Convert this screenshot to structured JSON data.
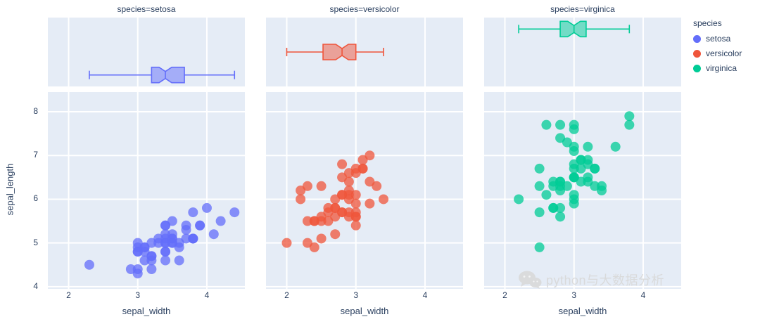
{
  "legend": {
    "title": "species",
    "items": [
      {
        "label": "setosa",
        "color": "#636EFA"
      },
      {
        "label": "versicolor",
        "color": "#EF553B"
      },
      {
        "label": "virginica",
        "color": "#00CC96"
      }
    ]
  },
  "watermark": {
    "text": "python与大数据分析"
  },
  "chart_data": {
    "type": "scatter",
    "subtype": "faceted-scatter-with-marginal-box",
    "xlabel": "sepal_width",
    "ylabel": "sepal_length",
    "xlim": [
      1.7,
      4.55
    ],
    "ylim": [
      3.95,
      8.45
    ],
    "xticks": [
      2,
      3,
      4
    ],
    "yticks": [
      4,
      5,
      6,
      7,
      8
    ],
    "plot_bgcolor": "#E5ECF6",
    "grid_color": "#FFFFFF",
    "facets": [
      {
        "title": "species=setosa",
        "species": "setosa",
        "color": "#636EFA",
        "box": {
          "min": 2.3,
          "q1": 3.2,
          "median": 3.4,
          "q3": 3.675,
          "max": 4.4
        },
        "points": [
          [
            3.5,
            5.1
          ],
          [
            3.0,
            4.9
          ],
          [
            3.2,
            4.7
          ],
          [
            3.1,
            4.6
          ],
          [
            3.6,
            5.0
          ],
          [
            3.9,
            5.4
          ],
          [
            3.4,
            4.6
          ],
          [
            3.4,
            5.0
          ],
          [
            2.9,
            4.4
          ],
          [
            3.1,
            4.9
          ],
          [
            3.7,
            5.4
          ],
          [
            3.4,
            4.8
          ],
          [
            3.0,
            4.8
          ],
          [
            3.0,
            4.3
          ],
          [
            4.0,
            5.8
          ],
          [
            4.4,
            5.7
          ],
          [
            3.9,
            5.4
          ],
          [
            3.5,
            5.1
          ],
          [
            3.8,
            5.7
          ],
          [
            3.8,
            5.1
          ],
          [
            3.4,
            5.4
          ],
          [
            3.7,
            5.1
          ],
          [
            3.6,
            4.6
          ],
          [
            3.3,
            5.1
          ],
          [
            3.4,
            4.8
          ],
          [
            3.0,
            5.0
          ],
          [
            3.4,
            5.0
          ],
          [
            3.5,
            5.2
          ],
          [
            3.4,
            5.2
          ],
          [
            3.2,
            4.7
          ],
          [
            3.1,
            4.8
          ],
          [
            3.4,
            5.4
          ],
          [
            4.1,
            5.2
          ],
          [
            4.2,
            5.5
          ],
          [
            3.1,
            4.9
          ],
          [
            3.2,
            5.0
          ],
          [
            3.5,
            5.5
          ],
          [
            3.6,
            4.9
          ],
          [
            3.0,
            4.4
          ],
          [
            3.4,
            5.1
          ],
          [
            3.5,
            5.0
          ],
          [
            2.3,
            4.5
          ],
          [
            3.2,
            4.4
          ],
          [
            3.5,
            5.0
          ],
          [
            3.8,
            5.1
          ],
          [
            3.0,
            4.8
          ],
          [
            3.8,
            5.1
          ],
          [
            3.2,
            4.6
          ],
          [
            3.7,
            5.3
          ],
          [
            3.3,
            5.0
          ]
        ]
      },
      {
        "title": "species=versicolor",
        "species": "versicolor",
        "color": "#EF553B",
        "box": {
          "min": 2.0,
          "q1": 2.525,
          "median": 2.8,
          "q3": 3.0,
          "max": 3.4
        },
        "points": [
          [
            3.2,
            7.0
          ],
          [
            3.2,
            6.4
          ],
          [
            3.1,
            6.9
          ],
          [
            2.3,
            5.5
          ],
          [
            2.8,
            6.5
          ],
          [
            2.8,
            5.7
          ],
          [
            3.3,
            6.3
          ],
          [
            2.4,
            4.9
          ],
          [
            2.9,
            6.6
          ],
          [
            2.7,
            5.2
          ],
          [
            2.0,
            5.0
          ],
          [
            3.0,
            5.9
          ],
          [
            2.2,
            6.0
          ],
          [
            2.9,
            6.1
          ],
          [
            2.9,
            5.6
          ],
          [
            3.1,
            6.7
          ],
          [
            3.0,
            5.6
          ],
          [
            2.7,
            5.8
          ],
          [
            2.2,
            6.2
          ],
          [
            2.5,
            5.6
          ],
          [
            3.2,
            5.9
          ],
          [
            2.8,
            6.1
          ],
          [
            2.5,
            6.3
          ],
          [
            2.8,
            6.1
          ],
          [
            2.9,
            6.4
          ],
          [
            3.0,
            6.6
          ],
          [
            2.8,
            6.8
          ],
          [
            3.0,
            6.7
          ],
          [
            2.9,
            6.0
          ],
          [
            2.6,
            5.7
          ],
          [
            2.4,
            5.5
          ],
          [
            2.4,
            5.5
          ],
          [
            2.7,
            5.8
          ],
          [
            2.7,
            6.0
          ],
          [
            3.0,
            5.4
          ],
          [
            3.4,
            6.0
          ],
          [
            3.1,
            6.7
          ],
          [
            2.3,
            6.3
          ],
          [
            3.0,
            5.6
          ],
          [
            2.5,
            5.5
          ],
          [
            2.6,
            5.5
          ],
          [
            3.0,
            6.1
          ],
          [
            2.6,
            5.8
          ],
          [
            2.3,
            5.0
          ],
          [
            2.7,
            5.6
          ],
          [
            3.0,
            5.7
          ],
          [
            2.9,
            5.7
          ],
          [
            2.9,
            6.2
          ],
          [
            2.5,
            5.1
          ],
          [
            2.8,
            5.7
          ]
        ]
      },
      {
        "title": "species=virginica",
        "species": "virginica",
        "color": "#00CC96",
        "box": {
          "min": 2.2,
          "q1": 2.8,
          "median": 3.0,
          "q3": 3.175,
          "max": 3.8
        },
        "points": [
          [
            3.3,
            6.3
          ],
          [
            2.7,
            5.8
          ],
          [
            3.0,
            7.1
          ],
          [
            2.9,
            6.3
          ],
          [
            3.0,
            6.5
          ],
          [
            3.0,
            7.6
          ],
          [
            2.5,
            4.9
          ],
          [
            2.9,
            7.3
          ],
          [
            2.5,
            6.7
          ],
          [
            3.6,
            7.2
          ],
          [
            3.2,
            6.5
          ],
          [
            2.7,
            6.4
          ],
          [
            3.0,
            6.8
          ],
          [
            2.5,
            5.7
          ],
          [
            2.8,
            5.8
          ],
          [
            3.2,
            6.4
          ],
          [
            3.0,
            6.5
          ],
          [
            3.8,
            7.7
          ],
          [
            2.6,
            7.7
          ],
          [
            2.2,
            6.0
          ],
          [
            3.2,
            6.9
          ],
          [
            2.8,
            5.6
          ],
          [
            2.8,
            7.7
          ],
          [
            2.7,
            6.3
          ],
          [
            3.3,
            6.7
          ],
          [
            3.2,
            7.2
          ],
          [
            2.8,
            6.2
          ],
          [
            3.0,
            6.1
          ],
          [
            2.8,
            6.4
          ],
          [
            3.0,
            7.2
          ],
          [
            2.8,
            7.4
          ],
          [
            3.8,
            7.9
          ],
          [
            2.8,
            6.4
          ],
          [
            2.8,
            6.3
          ],
          [
            2.6,
            6.1
          ],
          [
            3.0,
            7.7
          ],
          [
            3.4,
            6.3
          ],
          [
            3.1,
            6.4
          ],
          [
            3.0,
            6.0
          ],
          [
            3.1,
            6.9
          ],
          [
            3.1,
            6.7
          ],
          [
            3.1,
            6.9
          ],
          [
            2.7,
            5.8
          ],
          [
            3.2,
            6.8
          ],
          [
            3.3,
            6.7
          ],
          [
            3.0,
            6.7
          ],
          [
            2.5,
            6.3
          ],
          [
            3.0,
            6.5
          ],
          [
            3.4,
            6.2
          ],
          [
            3.0,
            5.9
          ]
        ]
      }
    ]
  }
}
